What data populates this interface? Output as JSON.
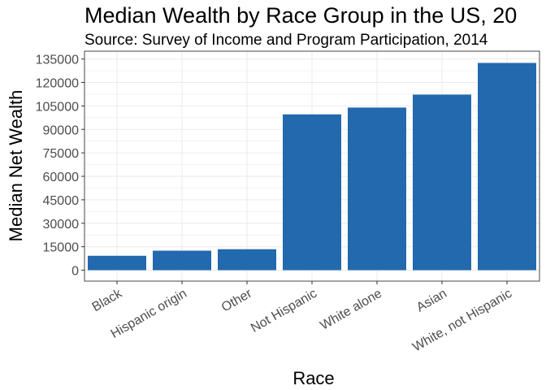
{
  "chart_data": {
    "type": "bar",
    "title": "Median Wealth by Race Group in the US, 20",
    "subtitle": "Source: Survey of Income and Program Participation, 2014",
    "xlabel": "Race",
    "ylabel": "Median Net Wealth",
    "categories": [
      "Black",
      "Hispanic origin",
      "Other",
      "Not Hispanic",
      "White alone",
      "Asian",
      "White, not Hispanic"
    ],
    "values": [
      9211,
      12460,
      13400,
      99600,
      103963,
      112250,
      132483
    ],
    "ylim": [
      -7000,
      140000
    ],
    "yticks": [
      0,
      15000,
      30000,
      45000,
      60000,
      75000,
      90000,
      105000,
      120000,
      135000
    ],
    "ytick_labels": [
      "0",
      "15000",
      "30000",
      "45000",
      "60000",
      "75000",
      "90000",
      "105000",
      "120000",
      "135000"
    ],
    "bar_color": "#2369ad",
    "grid": true,
    "legend": "none"
  }
}
